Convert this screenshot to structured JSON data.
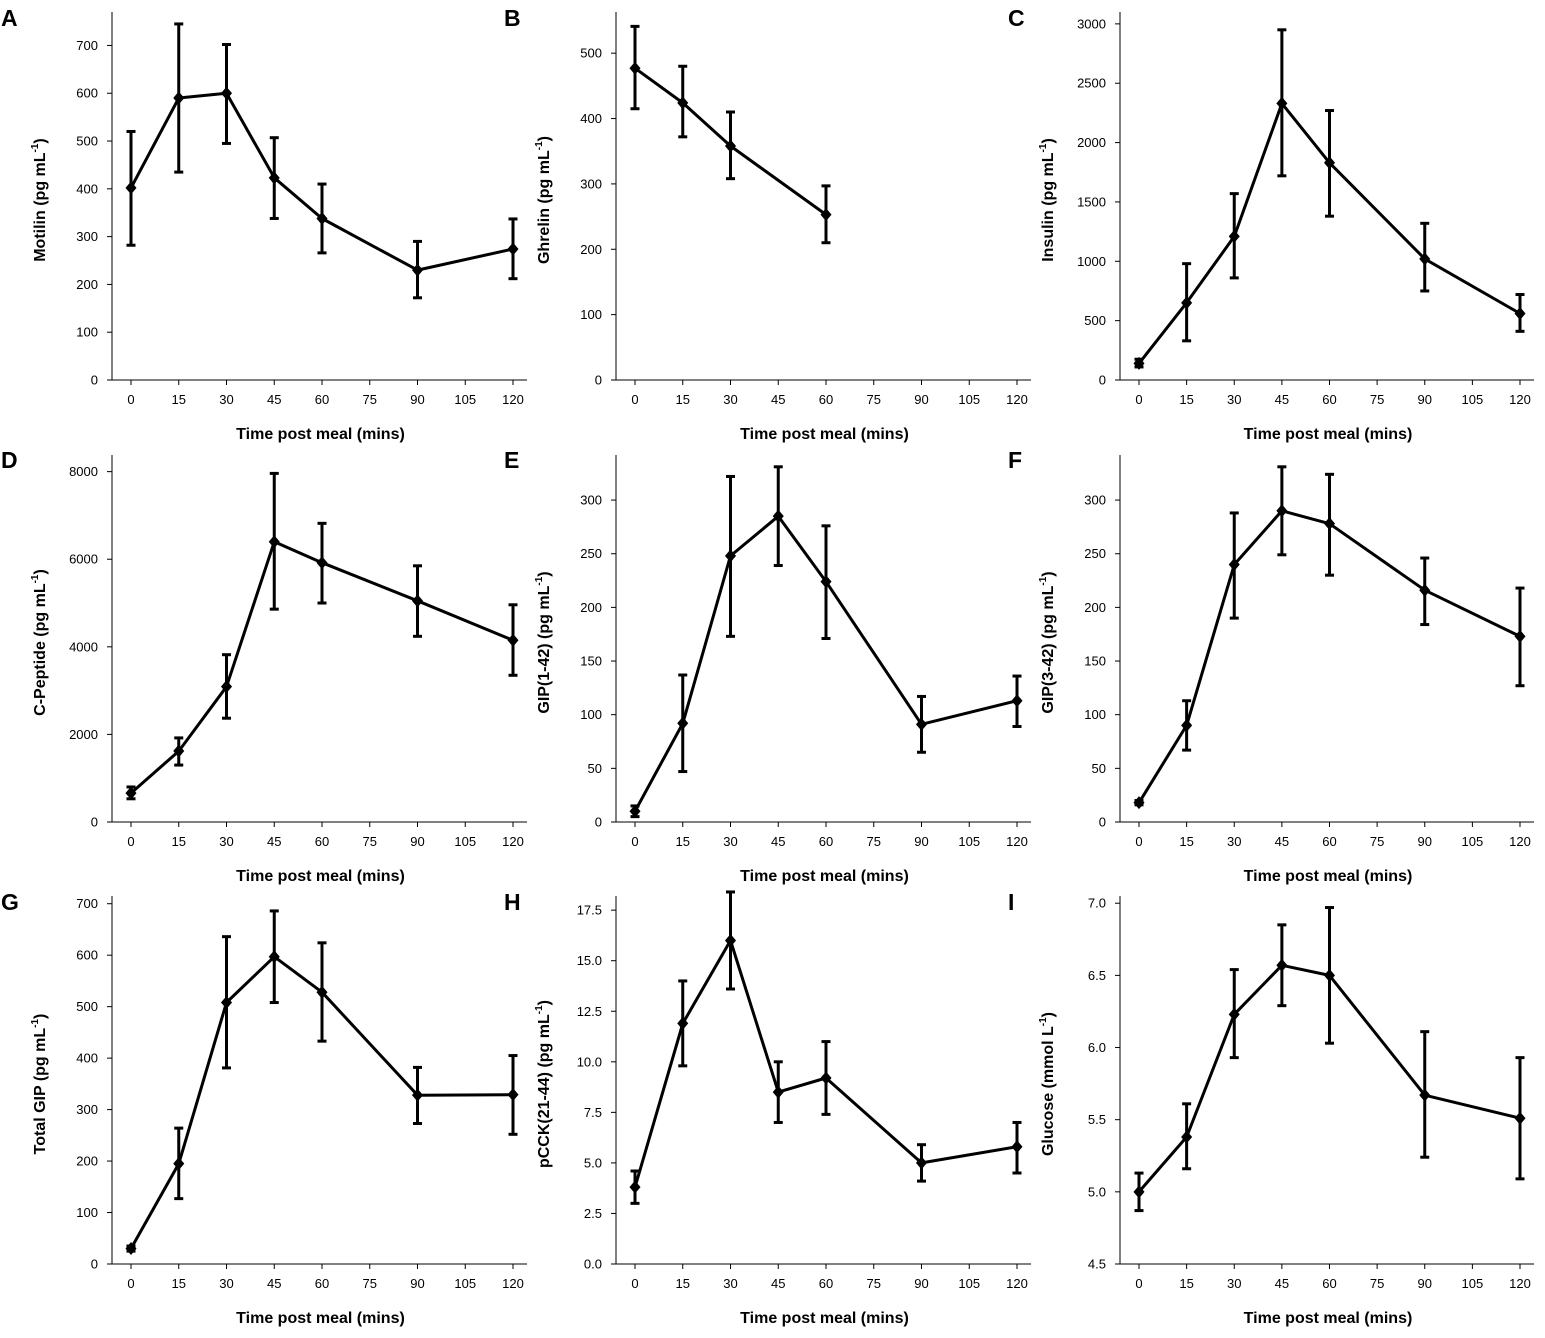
{
  "chart_data": [
    {
      "panel": "A",
      "type": "line",
      "title": "",
      "xlabel": "Time post meal (mins)",
      "ylabel": "Motilin (pg mL",
      "ylabel_sup": "-1",
      "ylabel_end": ")",
      "xlim": [
        -5,
        125
      ],
      "xticks": [
        "0",
        "15",
        "30",
        "45",
        "60",
        "75",
        "90",
        "105",
        "120"
      ],
      "ylim": [
        0,
        770
      ],
      "yticks": [
        "0",
        "100",
        "200",
        "300",
        "400",
        "500",
        "600",
        "700"
      ],
      "series": [
        {
          "name": "Motilin",
          "x": [
            0,
            15,
            30,
            45,
            60,
            90,
            120
          ],
          "y": [
            402,
            590,
            600,
            423,
            338,
            230,
            274
          ],
          "err_low": [
            282,
            435,
            495,
            338,
            266,
            172,
            212
          ],
          "err_high": [
            520,
            745,
            702,
            507,
            410,
            290,
            337
          ]
        }
      ]
    },
    {
      "panel": "B",
      "type": "line",
      "title": "",
      "xlabel": "Time post meal (mins)",
      "ylabel": "Ghrelin (pg mL",
      "ylabel_sup": "-1",
      "ylabel_end": ")",
      "xlim": [
        -5,
        125
      ],
      "xticks": [
        "0",
        "15",
        "30",
        "45",
        "60",
        "75",
        "90",
        "105",
        "120"
      ],
      "ylim": [
        0,
        563
      ],
      "yticks": [
        "0",
        "100",
        "200",
        "300",
        "400",
        "500"
      ],
      "series": [
        {
          "name": "Ghrelin",
          "x": [
            0,
            15,
            30,
            60
          ],
          "y": [
            477,
            424,
            358,
            253
          ],
          "err_low": [
            415,
            372,
            308,
            210
          ],
          "err_high": [
            541,
            480,
            410,
            297
          ]
        }
      ]
    },
    {
      "panel": "C",
      "type": "line",
      "title": "",
      "xlabel": "Time post meal (mins)",
      "ylabel": "Insulin (pg mL",
      "ylabel_sup": "-1",
      "ylabel_end": ")",
      "xlim": [
        -5,
        125
      ],
      "xticks": [
        "0",
        "15",
        "30",
        "45",
        "60",
        "75",
        "90",
        "105",
        "120"
      ],
      "ylim": [
        0,
        3100
      ],
      "yticks": [
        "0",
        "500",
        "1000",
        "1500",
        "2000",
        "2500",
        "3000"
      ],
      "series": [
        {
          "name": "Insulin",
          "x": [
            0,
            15,
            30,
            45,
            60,
            90,
            120
          ],
          "y": [
            140,
            650,
            1210,
            2330,
            1830,
            1020,
            560
          ],
          "err_low": [
            110,
            330,
            860,
            1720,
            1380,
            750,
            410
          ],
          "err_high": [
            175,
            980,
            1570,
            2950,
            2270,
            1320,
            720
          ]
        }
      ]
    },
    {
      "panel": "D",
      "type": "line",
      "title": "",
      "xlabel": "Time post meal (mins)",
      "ylabel": "C-Peptide (pg mL",
      "ylabel_sup": "-1",
      "ylabel_end": ")",
      "xlim": [
        -5,
        125
      ],
      "xticks": [
        "0",
        "15",
        "30",
        "45",
        "60",
        "75",
        "90",
        "105",
        "120"
      ],
      "ylim": [
        0,
        8380
      ],
      "yticks": [
        "0",
        "2000",
        "4000",
        "6000",
        "8000"
      ],
      "series": [
        {
          "name": "C-Peptide",
          "x": [
            0,
            15,
            30,
            45,
            60,
            90,
            120
          ],
          "y": [
            660,
            1620,
            3090,
            6400,
            5920,
            5050,
            4150
          ],
          "err_low": [
            530,
            1300,
            2370,
            4860,
            5000,
            4240,
            3350
          ],
          "err_high": [
            800,
            1920,
            3820,
            7960,
            6820,
            5850,
            4960
          ]
        }
      ]
    },
    {
      "panel": "E",
      "type": "line",
      "title": "",
      "xlabel": "Time post meal (mins)",
      "ylabel": "GIP(1-42) (pg mL",
      "ylabel_sup": "-1",
      "ylabel_end": ")",
      "xlim": [
        -5,
        125
      ],
      "xticks": [
        "0",
        "15",
        "30",
        "45",
        "60",
        "75",
        "90",
        "105",
        "120"
      ],
      "ylim": [
        0,
        342
      ],
      "yticks": [
        "0",
        "50",
        "100",
        "150",
        "200",
        "250",
        "300"
      ],
      "series": [
        {
          "name": "GIP(1-42)",
          "x": [
            0,
            15,
            30,
            45,
            60,
            90,
            120
          ],
          "y": [
            10,
            92,
            248,
            285,
            224,
            91,
            113
          ],
          "err_low": [
            5,
            47,
            173,
            239,
            171,
            65,
            89
          ],
          "err_high": [
            15,
            137,
            322,
            331,
            276,
            117,
            136
          ]
        }
      ]
    },
    {
      "panel": "F",
      "type": "line",
      "title": "",
      "xlabel": "Time post meal (mins)",
      "ylabel": "GIP(3-42) (pg mL",
      "ylabel_sup": "-1",
      "ylabel_end": ")",
      "xlim": [
        -5,
        125
      ],
      "xticks": [
        "0",
        "15",
        "30",
        "45",
        "60",
        "75",
        "90",
        "105",
        "120"
      ],
      "ylim": [
        0,
        342
      ],
      "yticks": [
        "0",
        "50",
        "100",
        "150",
        "200",
        "250",
        "300"
      ],
      "series": [
        {
          "name": "GIP(3-42)",
          "x": [
            0,
            15,
            30,
            45,
            60,
            90,
            120
          ],
          "y": [
            18,
            90,
            240,
            290,
            278,
            216,
            173
          ],
          "err_low": [
            16,
            67,
            190,
            249,
            230,
            184,
            127
          ],
          "err_high": [
            20,
            113,
            288,
            331,
            324,
            246,
            218
          ]
        }
      ]
    },
    {
      "panel": "G",
      "type": "line",
      "title": "",
      "xlabel": "Time post meal (mins)",
      "ylabel": "Total GIP (pg mL",
      "ylabel_sup": "-1",
      "ylabel_end": ")",
      "xlim": [
        -5,
        125
      ],
      "xticks": [
        "0",
        "15",
        "30",
        "45",
        "60",
        "75",
        "90",
        "105",
        "120"
      ],
      "ylim": [
        0,
        715
      ],
      "yticks": [
        "0",
        "100",
        "200",
        "300",
        "400",
        "500",
        "600",
        "700"
      ],
      "series": [
        {
          "name": "Total GIP",
          "x": [
            0,
            15,
            30,
            45,
            60,
            90,
            120
          ],
          "y": [
            30,
            195,
            508,
            597,
            528,
            328,
            329
          ],
          "err_low": [
            25,
            127,
            381,
            508,
            433,
            273,
            252
          ],
          "err_high": [
            35,
            264,
            636,
            686,
            624,
            382,
            405
          ]
        }
      ]
    },
    {
      "panel": "H",
      "type": "line",
      "title": "",
      "xlabel": "Time post meal (mins)",
      "ylabel": "pCCK(21-44) (pg mL",
      "ylabel_sup": "-1",
      "ylabel_end": ")",
      "xlim": [
        -5,
        125
      ],
      "xticks": [
        "0",
        "15",
        "30",
        "45",
        "60",
        "75",
        "90",
        "105",
        "120"
      ],
      "ylim": [
        0,
        18.2
      ],
      "yticks": [
        "0.0",
        "2.5",
        "5.0",
        "7.5",
        "10.0",
        "12.5",
        "15.0",
        "17.5"
      ],
      "series": [
        {
          "name": "pCCK(21-44)",
          "x": [
            0,
            15,
            30,
            45,
            60,
            90,
            120
          ],
          "y": [
            3.8,
            11.9,
            16.0,
            8.5,
            9.2,
            5.0,
            5.8
          ],
          "err_low": [
            3.0,
            9.8,
            13.6,
            7.0,
            7.4,
            4.1,
            4.5
          ],
          "err_high": [
            4.6,
            14.0,
            18.4,
            10.0,
            11.0,
            5.9,
            7.0
          ]
        }
      ]
    },
    {
      "panel": "I",
      "type": "line",
      "title": "",
      "xlabel": "Time post meal (mins)",
      "ylabel": "Glucose (mmol L",
      "ylabel_sup": "-1",
      "ylabel_end": ")",
      "xlim": [
        -5,
        125
      ],
      "xticks": [
        "0",
        "15",
        "30",
        "45",
        "60",
        "75",
        "90",
        "105",
        "120"
      ],
      "ylim": [
        4.5,
        7.05
      ],
      "yticks": [
        "4.5",
        "5.0",
        "5.5",
        "6.0",
        "6.5",
        "7.0"
      ],
      "series": [
        {
          "name": "Glucose",
          "x": [
            0,
            15,
            30,
            45,
            60,
            90,
            120
          ],
          "y": [
            5.0,
            5.38,
            6.23,
            6.57,
            6.5,
            5.67,
            5.51
          ],
          "err_low": [
            4.87,
            5.16,
            5.93,
            6.29,
            6.03,
            5.24,
            5.09
          ],
          "err_high": [
            5.13,
            5.61,
            6.54,
            6.85,
            6.97,
            6.11,
            5.93
          ]
        }
      ]
    }
  ]
}
